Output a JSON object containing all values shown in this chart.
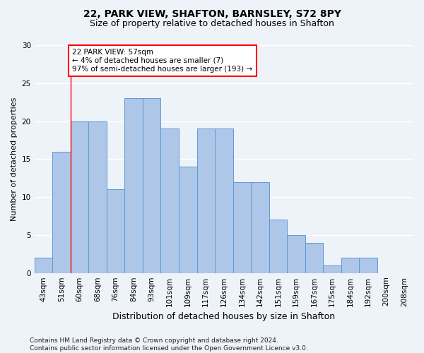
{
  "title1": "22, PARK VIEW, SHAFTON, BARNSLEY, S72 8PY",
  "title2": "Size of property relative to detached houses in Shafton",
  "xlabel": "Distribution of detached houses by size in Shafton",
  "ylabel": "Number of detached properties",
  "categories": [
    "43sqm",
    "51sqm",
    "60sqm",
    "68sqm",
    "76sqm",
    "84sqm",
    "93sqm",
    "101sqm",
    "109sqm",
    "117sqm",
    "126sqm",
    "134sqm",
    "142sqm",
    "151sqm",
    "159sqm",
    "167sqm",
    "175sqm",
    "184sqm",
    "192sqm",
    "200sqm",
    "208sqm"
  ],
  "values": [
    2,
    16,
    20,
    20,
    11,
    23,
    23,
    19,
    14,
    19,
    19,
    12,
    12,
    7,
    5,
    4,
    1,
    2,
    2,
    0,
    0
  ],
  "bar_color": "#aec6e8",
  "bar_edge_color": "#5b9bd5",
  "annotation_box_text": "22 PARK VIEW: 57sqm\n← 4% of detached houses are smaller (7)\n97% of semi-detached houses are larger (193) →",
  "red_line_x": 1.5,
  "ylim": [
    0,
    30
  ],
  "yticks": [
    0,
    5,
    10,
    15,
    20,
    25,
    30
  ],
  "footer": "Contains HM Land Registry data © Crown copyright and database right 2024.\nContains public sector information licensed under the Open Government Licence v3.0.",
  "background_color": "#eef2f9",
  "grid_color": "#ffffff",
  "title_fontsize": 10,
  "subtitle_fontsize": 9,
  "ylabel_fontsize": 8,
  "xlabel_fontsize": 9,
  "tick_fontsize": 7.5,
  "footer_fontsize": 6.5
}
